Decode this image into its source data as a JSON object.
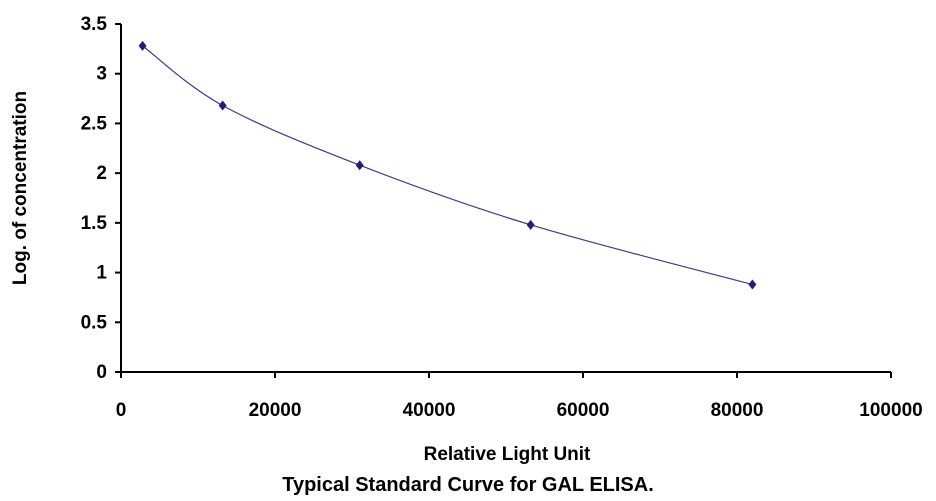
{
  "chart_data": {
    "type": "scatter",
    "title": "",
    "caption": "Typical Standard Curve for GAL ELISA.",
    "xlabel": "Relative Light Unit",
    "ylabel": "Log. of concentration",
    "xlim": [
      0,
      100000
    ],
    "ylim": [
      0,
      3.5
    ],
    "x_ticks": [
      "0",
      "20000",
      "40000",
      "60000",
      "80000",
      "100000"
    ],
    "y_ticks": [
      "0",
      "0.5",
      "1",
      "1.5",
      "2",
      "2.5",
      "3",
      "3.5"
    ],
    "grid": false,
    "legend": "none",
    "series": [
      {
        "x": [
          2800,
          13200,
          31000,
          53200,
          82000
        ],
        "y": [
          3.28,
          2.68,
          2.08,
          1.48,
          0.88
        ]
      }
    ],
    "colors": {
      "marker": "#1f1f7a",
      "line": "#3a3a9a",
      "axis": "#000000"
    }
  }
}
